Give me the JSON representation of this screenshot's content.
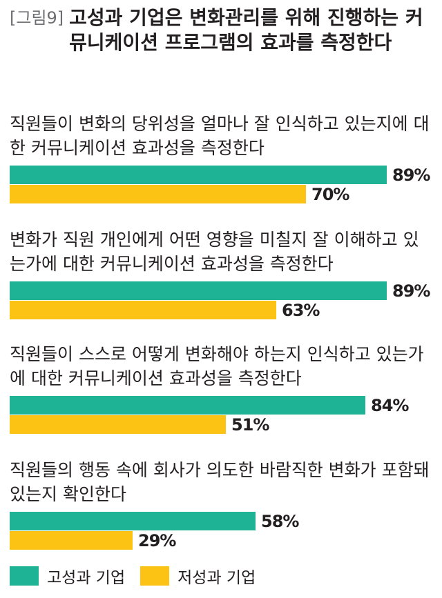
{
  "title": {
    "figure_label": "[그림9]",
    "text": "고성과 기업은 변화관리를 위해 진행하는 커뮤니케이션 프로그램의 효과를 측정한다"
  },
  "chart_data": {
    "type": "bar",
    "orientation": "horizontal",
    "categories": [
      "직원들이 변화의 당위성을 얼마나 잘 인식하고 있는지에 대한 커뮤니케이션 효과성을 측정한다",
      "변화가 직원 개인에게 어떤 영향을 미칠지 잘 이해하고 있는가에 대한 커뮤니케이션 효과성을 측정한다",
      "직원들이 스스로 어떻게 변화해야 하는지 인식하고 있는가에 대한 커뮤니케이션 효과성을 측정한다",
      "직원들의 행동 속에 회사가 의도한 바람직한 변화가 포함돼 있는지 확인한다"
    ],
    "series": [
      {
        "name": "고성과 기업",
        "values": [
          89,
          89,
          84,
          58
        ],
        "labels": [
          "89%",
          "89%",
          "84%",
          "58%"
        ],
        "color": "#1db394"
      },
      {
        "name": "저성과 기업",
        "values": [
          70,
          63,
          51,
          29
        ],
        "labels": [
          "70%",
          "63%",
          "51%",
          "29%"
        ],
        "color": "#fcc314"
      }
    ],
    "xlim": [
      0,
      100
    ],
    "unit": "%",
    "grid": false,
    "legend_position": "bottom-left"
  }
}
